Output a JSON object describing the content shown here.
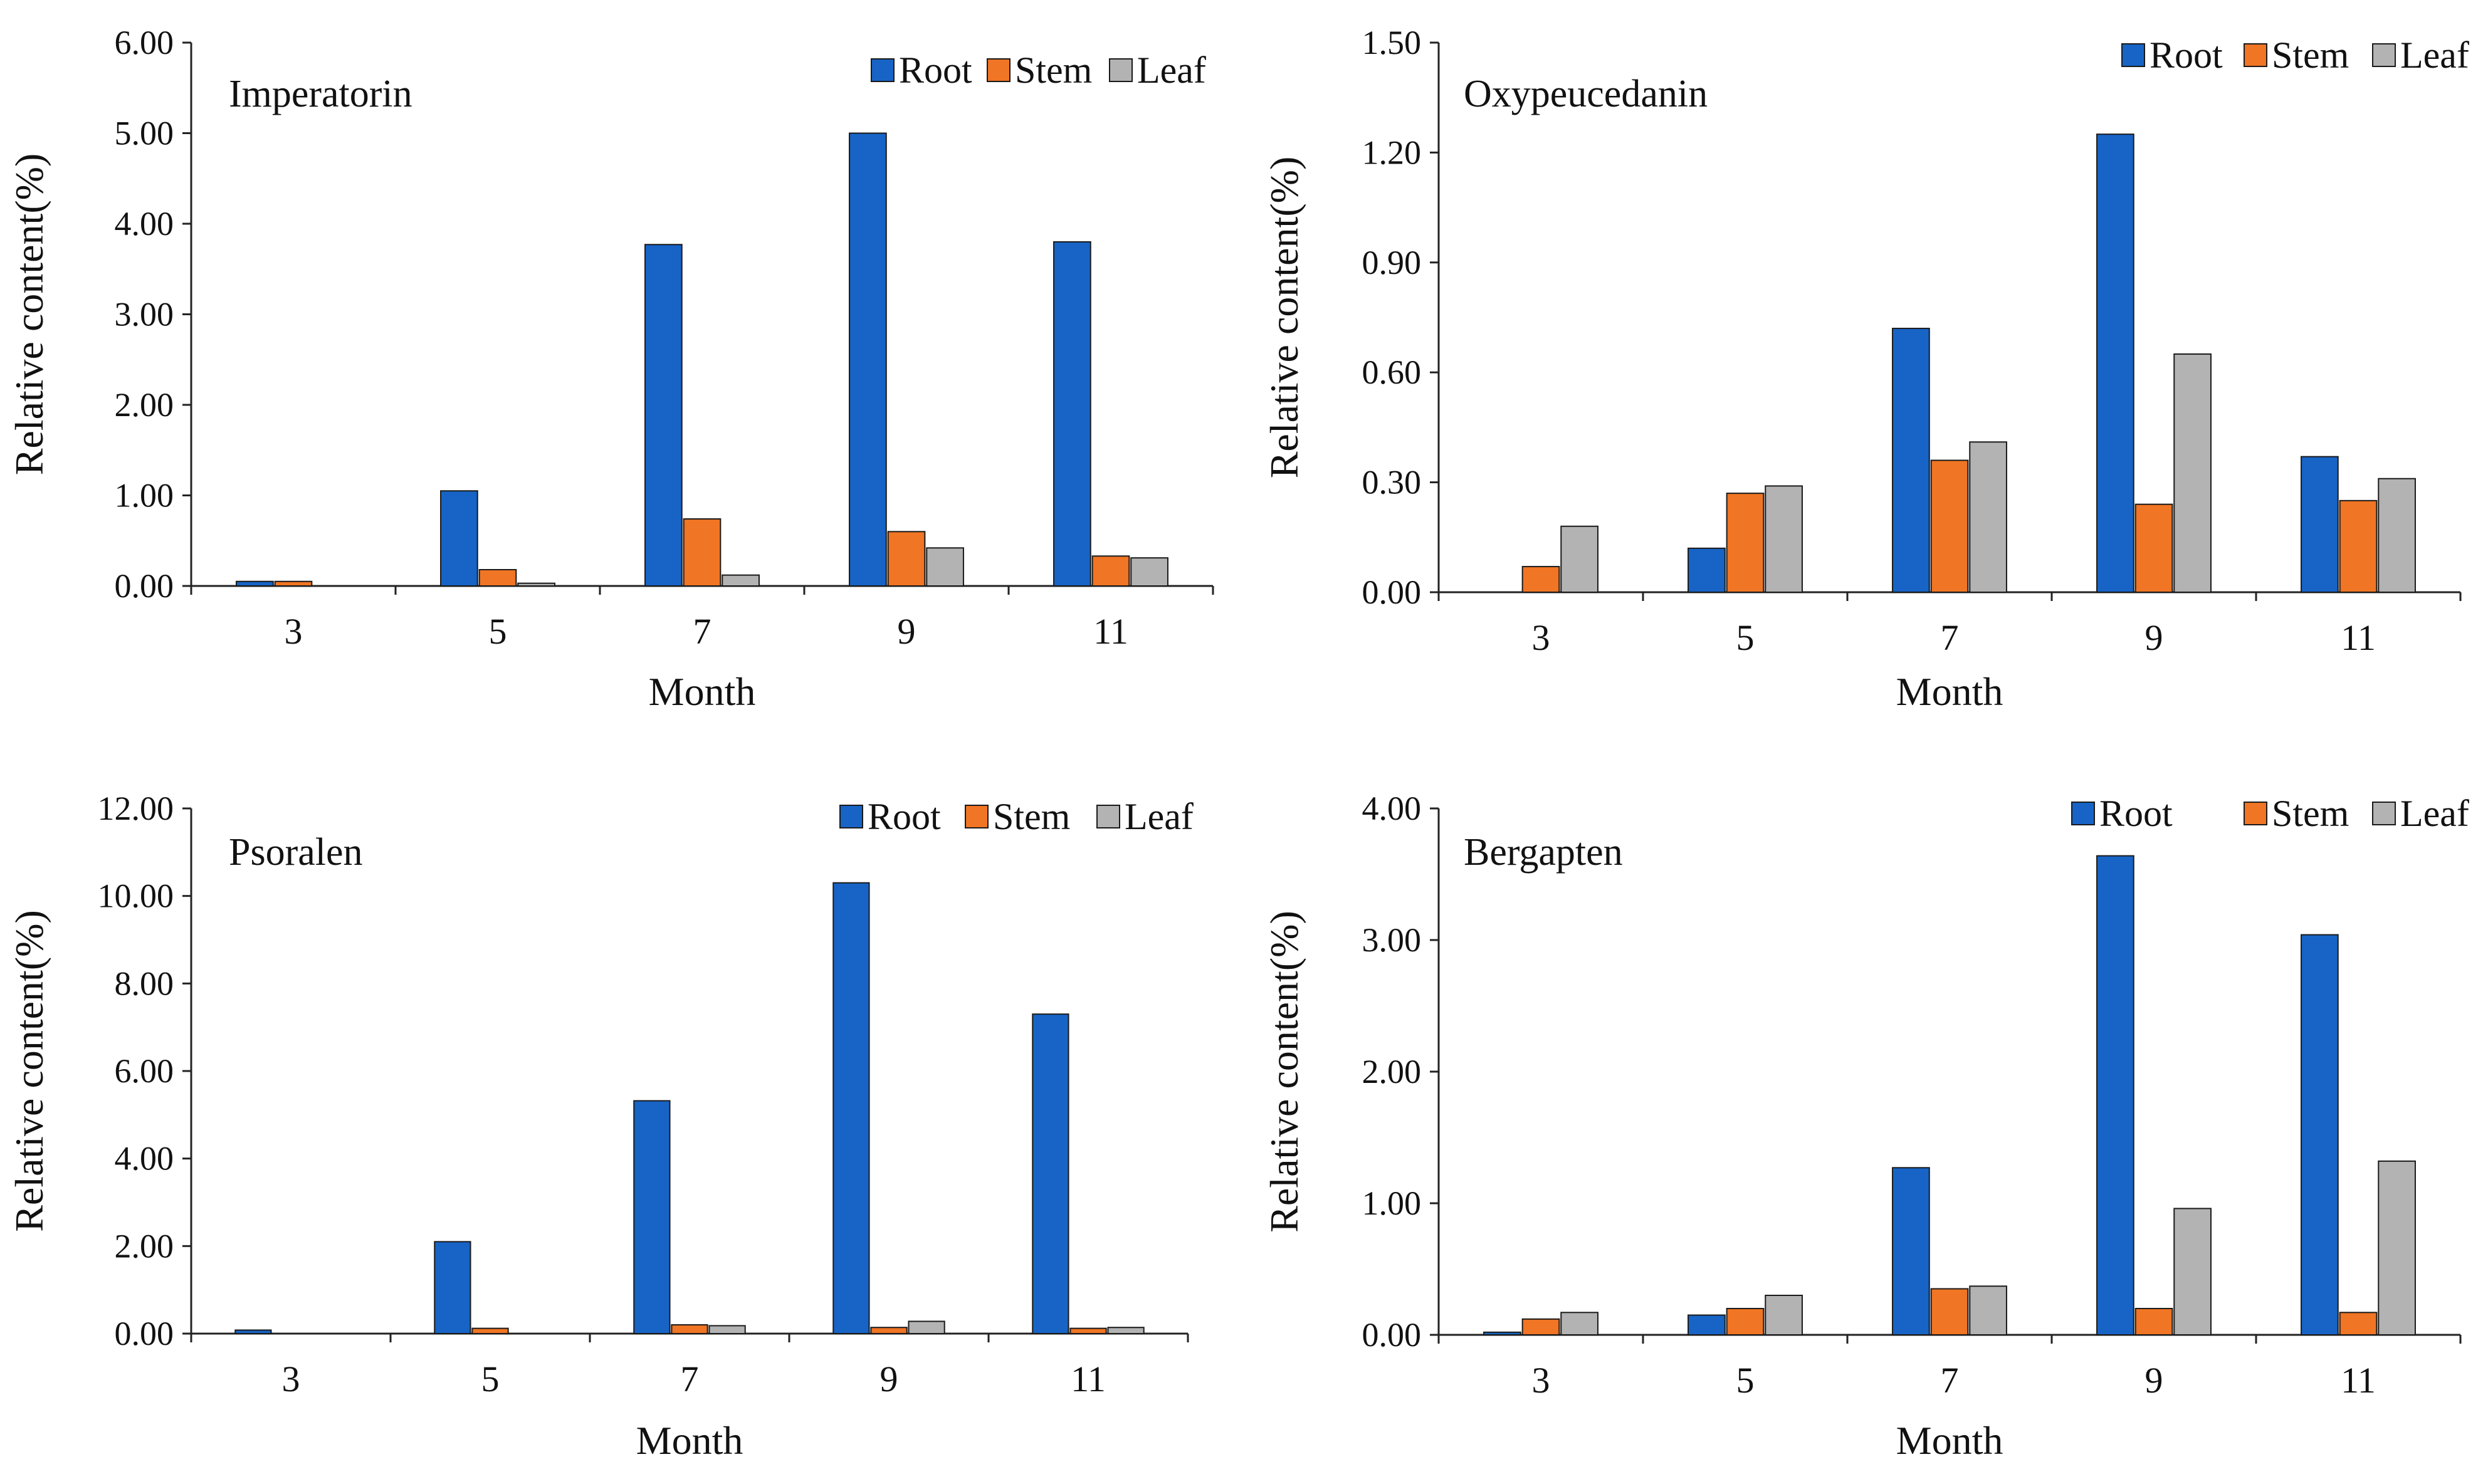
{
  "figure": {
    "series_colors": {
      "Root": "#1764c6",
      "Stem": "#f07524",
      "Leaf": "#b3b3b3"
    }
  },
  "chart_data": [
    {
      "type": "bar",
      "title": "Imperatorin",
      "xlabel": "Month",
      "ylabel": "Relative content(%)",
      "categories": [
        "3",
        "5",
        "7",
        "9",
        "11"
      ],
      "ylim": [
        0,
        6
      ],
      "yticks": [
        "0.00",
        "1.00",
        "2.00",
        "3.00",
        "4.00",
        "5.00",
        "6.00"
      ],
      "legend": [
        "Root",
        "Stem",
        "Leaf"
      ],
      "series": [
        {
          "name": "Root",
          "values": [
            0.05,
            1.05,
            3.77,
            5.0,
            3.8
          ]
        },
        {
          "name": "Stem",
          "values": [
            0.05,
            0.18,
            0.74,
            0.6,
            0.33
          ]
        },
        {
          "name": "Leaf",
          "values": [
            0.0,
            0.03,
            0.12,
            0.42,
            0.31
          ]
        }
      ]
    },
    {
      "type": "bar",
      "title": "Oxypeucedanin",
      "xlabel": "Month",
      "ylabel": "Relative content(%)",
      "categories": [
        "3",
        "5",
        "7",
        "9",
        "11"
      ],
      "ylim": [
        0,
        1.5
      ],
      "yticks": [
        "0.00",
        "0.30",
        "0.60",
        "0.90",
        "1.20",
        "1.50"
      ],
      "legend": [
        "Root",
        "Stem",
        "Leaf"
      ],
      "series": [
        {
          "name": "Root",
          "values": [
            0.0,
            0.12,
            0.72,
            1.25,
            0.37
          ]
        },
        {
          "name": "Stem",
          "values": [
            0.07,
            0.27,
            0.36,
            0.24,
            0.25
          ]
        },
        {
          "name": "Leaf",
          "values": [
            0.18,
            0.29,
            0.41,
            0.65,
            0.31
          ]
        }
      ]
    },
    {
      "type": "bar",
      "title": "Psoralen",
      "xlabel": "Month",
      "ylabel": "Relative content(%)",
      "categories": [
        "3",
        "5",
        "7",
        "9",
        "11"
      ],
      "ylim": [
        0,
        12
      ],
      "yticks": [
        "0.00",
        "2.00",
        "4.00",
        "6.00",
        "8.00",
        "10.00",
        "12.00"
      ],
      "legend": [
        "Root",
        "Stem",
        "Leaf"
      ],
      "series": [
        {
          "name": "Root",
          "values": [
            0.08,
            2.1,
            5.32,
            10.3,
            7.3
          ]
        },
        {
          "name": "Stem",
          "values": [
            0.0,
            0.12,
            0.2,
            0.14,
            0.12
          ]
        },
        {
          "name": "Leaf",
          "values": [
            0.0,
            0.0,
            0.18,
            0.28,
            0.14
          ]
        }
      ]
    },
    {
      "type": "bar",
      "title": "Bergapten",
      "xlabel": "Month",
      "ylabel": "Relative content(%)",
      "categories": [
        "3",
        "5",
        "7",
        "9",
        "11"
      ],
      "ylim": [
        0,
        4
      ],
      "yticks": [
        "0.00",
        "1.00",
        "2.00",
        "3.00",
        "4.00"
      ],
      "legend": [
        "Root",
        "Stem",
        "Leaf"
      ],
      "series": [
        {
          "name": "Root",
          "values": [
            0.02,
            0.15,
            1.27,
            3.64,
            3.04
          ]
        },
        {
          "name": "Stem",
          "values": [
            0.12,
            0.2,
            0.35,
            0.2,
            0.17
          ]
        },
        {
          "name": "Leaf",
          "values": [
            0.17,
            0.3,
            0.37,
            0.96,
            1.32
          ]
        }
      ]
    }
  ]
}
